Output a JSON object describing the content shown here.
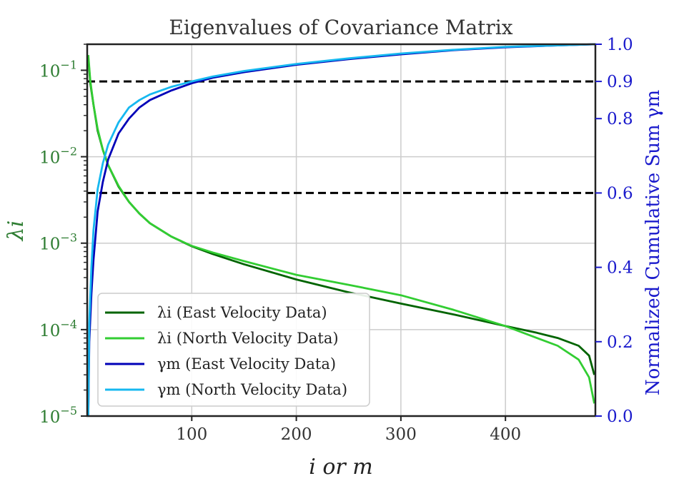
{
  "chart_data": {
    "type": "line",
    "title": "Eigenvalues of Covariance Matrix",
    "xlabel": "i or m",
    "ylabel_left": "λi",
    "ylabel_right": "Normalized Cumulative Sum γm",
    "xlim": [
      0,
      486
    ],
    "ylim_left": [
      1e-05,
      0.2
    ],
    "ylim_right": [
      0.0,
      1.0
    ],
    "yscale_left": "log",
    "grid": true,
    "legend_position": "bottom-left",
    "x_ticks": [
      {
        "value": 100,
        "label": "100"
      },
      {
        "value": 200,
        "label": "200"
      },
      {
        "value": 300,
        "label": "300"
      },
      {
        "value": 400,
        "label": "400"
      }
    ],
    "y_left_ticks": [
      {
        "value": 0.1,
        "base": "10",
        "exp": "−1"
      },
      {
        "value": 0.01,
        "base": "10",
        "exp": "−2"
      },
      {
        "value": 0.001,
        "base": "10",
        "exp": "−3"
      },
      {
        "value": 0.0001,
        "base": "10",
        "exp": "−4"
      },
      {
        "value": 1e-05,
        "base": "10",
        "exp": "−5"
      }
    ],
    "y_right_ticks": [
      {
        "value": 0.0,
        "label": "0.0"
      },
      {
        "value": 0.2,
        "label": "0.2"
      },
      {
        "value": 0.4,
        "label": "0.4"
      },
      {
        "value": 0.6,
        "label": "0.6"
      },
      {
        "value": 0.8,
        "label": "0.8"
      },
      {
        "value": 0.9,
        "label": "0.9"
      },
      {
        "value": 1.0,
        "label": "1.0"
      }
    ],
    "reference_lines": [
      {
        "axis": "right",
        "value": 0.9,
        "style": "dashed",
        "color": "#000000"
      },
      {
        "axis": "right",
        "value": 0.6,
        "style": "dashed",
        "color": "#000000"
      }
    ],
    "series": [
      {
        "name": "λi (East Velocity Data)",
        "axis": "left",
        "color": "#006400",
        "x": [
          1,
          3,
          6,
          10,
          15,
          20,
          30,
          40,
          50,
          60,
          80,
          100,
          120,
          150,
          200,
          250,
          300,
          350,
          400,
          430,
          450,
          470,
          480,
          485
        ],
        "y": [
          0.14,
          0.07,
          0.04,
          0.02,
          0.012,
          0.008,
          0.0045,
          0.003,
          0.0022,
          0.0017,
          0.0012,
          0.00092,
          0.00075,
          0.00057,
          0.00038,
          0.00027,
          0.0002,
          0.00015,
          0.00011,
          9.2e-05,
          8e-05,
          6.5e-05,
          5e-05,
          3e-05
        ]
      },
      {
        "name": "λi (North Velocity Data)",
        "axis": "left",
        "color": "#32cd32",
        "x": [
          1,
          3,
          6,
          10,
          15,
          20,
          30,
          40,
          50,
          60,
          80,
          100,
          120,
          150,
          200,
          250,
          300,
          350,
          400,
          430,
          450,
          470,
          480,
          485
        ],
        "y": [
          0.15,
          0.075,
          0.04,
          0.021,
          0.012,
          0.008,
          0.0046,
          0.003,
          0.0022,
          0.0017,
          0.0012,
          0.00093,
          0.00078,
          0.00062,
          0.00043,
          0.00033,
          0.00025,
          0.00017,
          0.00011,
          8e-05,
          6.5e-05,
          4.5e-05,
          2.8e-05,
          1.4e-05
        ]
      },
      {
        "name": "γm (East Velocity Data)",
        "axis": "right",
        "color": "#0000b8",
        "x": [
          1,
          2,
          4,
          6,
          10,
          15,
          20,
          30,
          40,
          50,
          60,
          80,
          100,
          120,
          150,
          200,
          250,
          300,
          350,
          400,
          450,
          486
        ],
        "y": [
          0.0,
          0.2,
          0.33,
          0.42,
          0.55,
          0.63,
          0.69,
          0.76,
          0.8,
          0.83,
          0.85,
          0.875,
          0.895,
          0.91,
          0.925,
          0.945,
          0.96,
          0.973,
          0.984,
          0.992,
          0.997,
          1.0
        ]
      },
      {
        "name": "γm (North Velocity Data)",
        "axis": "right",
        "color": "#16b8f0",
        "x": [
          1,
          2,
          4,
          6,
          10,
          15,
          20,
          30,
          40,
          50,
          60,
          80,
          100,
          120,
          150,
          200,
          250,
          300,
          350,
          400,
          450,
          486
        ],
        "y": [
          0.0,
          0.25,
          0.4,
          0.5,
          0.61,
          0.68,
          0.73,
          0.79,
          0.83,
          0.85,
          0.865,
          0.885,
          0.9,
          0.913,
          0.928,
          0.947,
          0.962,
          0.975,
          0.985,
          0.993,
          0.997,
          1.0
        ]
      }
    ]
  }
}
